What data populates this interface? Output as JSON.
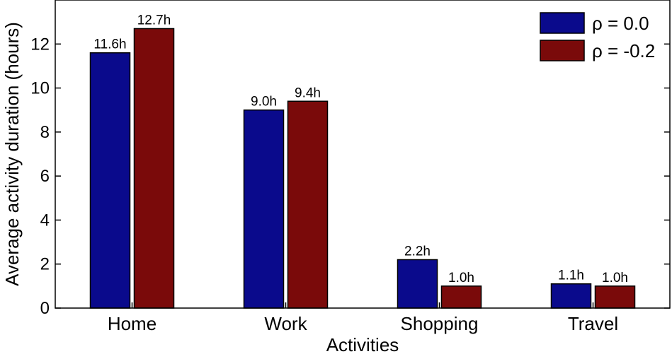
{
  "chart_data": {
    "type": "bar",
    "categories": [
      "Home",
      "Work",
      "Shopping",
      "Travel"
    ],
    "series": [
      {
        "name": "ρ = 0.0",
        "values": [
          11.6,
          9.0,
          2.2,
          1.1
        ],
        "labels": [
          "11.6h",
          "9.0h",
          "2.2h",
          "1.1h"
        ],
        "color": "#0a0a8c"
      },
      {
        "name": "ρ = -0.2",
        "values": [
          12.7,
          9.4,
          1.0,
          1.0
        ],
        "labels": [
          "12.7h",
          "9.4h",
          "1.0h",
          "1.0h"
        ],
        "color": "#7a0a0a"
      }
    ],
    "xlabel": "Activities",
    "ylabel": "Average activity duration (hours)",
    "ylim": [
      0,
      14
    ],
    "yticks": [
      "0",
      "2",
      "4",
      "6",
      "8",
      "10",
      "12"
    ],
    "grid": false,
    "legend_position": "top-right"
  }
}
